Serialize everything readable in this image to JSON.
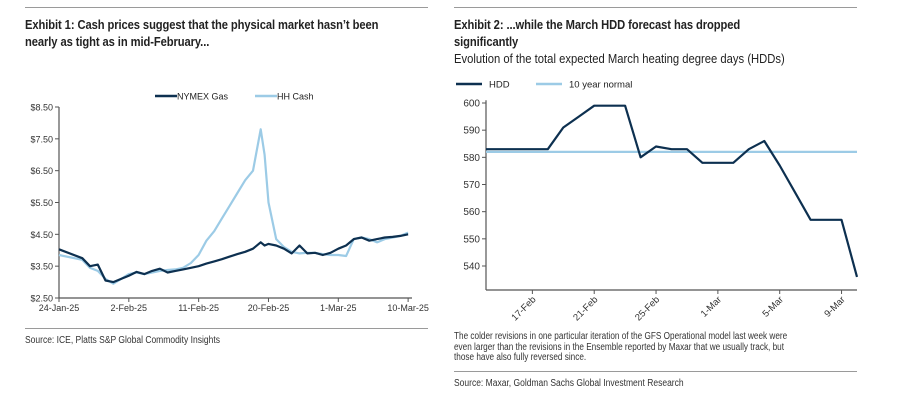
{
  "exhibit1": {
    "title_line1": "Exhibit 1: Cash prices suggest that the physical market hasn’t been",
    "title_line2": "nearly as tight as in mid-February...",
    "source": "Source: ICE, Platts S&P Global Commodity Insights"
  },
  "exhibit2": {
    "title_line1": "Exhibit 2: ...while the March HDD forecast has dropped",
    "title_line2": "significantly",
    "subtitle": "Evolution of the total expected March heating degree days (HDDs)",
    "note_line1": "The colder revisions in one particular iteration of the GFS Operational model last week were",
    "note_line2": "even larger than the revisions in the Ensemble reported by Maxar that we usually track, but",
    "note_line3": "those have also fully reversed since.",
    "source": "Source: Maxar, Goldman Sachs Global Investment Research"
  },
  "colors": {
    "dark_series": "#0d3050",
    "light_series": "#9ccbe6",
    "axis": "#555555"
  },
  "chart_data": [
    {
      "type": "line",
      "title": "Exhibit 1: Cash prices suggest that the physical market hasn’t been nearly as tight as in mid-February...",
      "xlabel": "",
      "ylabel": "",
      "x_unit": "days since 24-Jan-25",
      "xlim": [
        0,
        45.5
      ],
      "ylim": [
        2.5,
        8.5
      ],
      "x_ticks": [
        0,
        9,
        18,
        27,
        36,
        45
      ],
      "x_tick_labels": [
        "24-Jan-25",
        "2-Feb-25",
        "11-Feb-25",
        "20-Feb-25",
        "1-Mar-25",
        "10-Mar-25"
      ],
      "y_ticks": [
        2.5,
        3.5,
        4.5,
        5.5,
        6.5,
        7.5,
        8.5
      ],
      "y_tick_labels": [
        "$2.50",
        "$3.50",
        "$4.50",
        "$5.50",
        "$6.50",
        "$7.50",
        "$8.50"
      ],
      "grid": false,
      "legend_position": "top-center",
      "series": [
        {
          "name": "NYMEX Gas",
          "color": "#0d3050",
          "x": [
            0,
            3,
            4,
            5,
            6,
            7,
            8,
            9,
            10,
            11,
            12,
            13,
            14,
            15,
            16,
            17,
            18,
            19,
            20,
            21,
            22,
            23,
            24,
            25,
            26,
            26.5,
            27,
            28,
            29,
            30,
            31,
            32,
            33,
            34,
            35,
            36,
            37,
            38,
            39,
            40,
            41,
            42,
            43,
            44,
            45
          ],
          "values": [
            4.03,
            3.75,
            3.5,
            3.55,
            3.05,
            3.0,
            3.1,
            3.2,
            3.32,
            3.25,
            3.35,
            3.42,
            3.3,
            3.35,
            3.4,
            3.45,
            3.5,
            3.58,
            3.65,
            3.72,
            3.8,
            3.88,
            3.95,
            4.05,
            4.25,
            4.15,
            4.2,
            4.15,
            4.05,
            3.9,
            4.15,
            3.9,
            3.92,
            3.85,
            3.92,
            4.05,
            4.15,
            4.35,
            4.4,
            4.3,
            4.35,
            4.4,
            4.42,
            4.45,
            4.5
          ],
          "note": "NYMEX Gas series"
        },
        {
          "name": "HH Cash",
          "color": "#9ccbe6",
          "x": [
            0,
            3,
            4,
            5,
            6,
            7,
            8,
            9,
            10,
            11,
            12,
            13,
            14,
            15,
            16,
            17,
            18,
            19,
            20,
            21,
            22,
            23,
            24,
            25,
            26,
            26.5,
            27,
            28,
            29,
            30,
            31,
            32,
            33,
            34,
            35,
            36,
            37,
            38,
            39,
            40,
            41,
            42,
            43,
            44,
            45
          ],
          "values": [
            3.85,
            3.7,
            3.45,
            3.35,
            3.1,
            2.95,
            3.1,
            3.25,
            3.3,
            3.25,
            3.3,
            3.35,
            3.38,
            3.4,
            3.45,
            3.6,
            3.85,
            4.3,
            4.6,
            5.0,
            5.4,
            5.8,
            6.2,
            6.5,
            7.8,
            7.0,
            5.5,
            4.35,
            4.1,
            3.95,
            3.9,
            3.92,
            3.92,
            3.88,
            3.85,
            3.85,
            3.82,
            4.35,
            4.4,
            4.35,
            4.25,
            4.35,
            4.4,
            4.45,
            4.55
          ],
          "note": "HH Cash series"
        }
      ]
    },
    {
      "type": "line",
      "title": "Exhibit 2: ...while the March HDD forecast has dropped significantly",
      "subtitle": "Evolution of the total expected March heating degree days (HDDs)",
      "xlabel": "",
      "ylabel": "",
      "x_unit": "days since 14-Feb",
      "xlim": [
        0,
        24
      ],
      "ylim": [
        534,
        601
      ],
      "x_ticks": [
        3,
        7,
        11,
        15,
        19,
        23
      ],
      "x_tick_labels": [
        "17-Feb",
        "21-Feb",
        "25-Feb",
        "1-Mar",
        "5-Mar",
        "9-Mar"
      ],
      "y_ticks": [
        540,
        550,
        560,
        570,
        580,
        590,
        600
      ],
      "y_tick_labels": [
        "540",
        "550",
        "560",
        "570",
        "580",
        "590",
        "600"
      ],
      "grid": false,
      "legend_position": "top-left",
      "series": [
        {
          "name": "HDD",
          "color": "#0d3050",
          "x": [
            0,
            4,
            5,
            6,
            7,
            8,
            9,
            10,
            11,
            12,
            13,
            14,
            15,
            16,
            17,
            18,
            19,
            20,
            21,
            22,
            23,
            24
          ],
          "values": [
            583,
            583,
            591,
            595,
            599,
            599,
            599,
            580,
            584,
            583,
            583,
            578,
            578,
            578,
            583,
            586,
            577,
            567,
            557,
            557,
            557,
            536
          ]
        },
        {
          "name": "10 year normal",
          "color": "#9ccbe6",
          "x": [
            0,
            24
          ],
          "values": [
            582,
            582
          ]
        }
      ]
    }
  ]
}
